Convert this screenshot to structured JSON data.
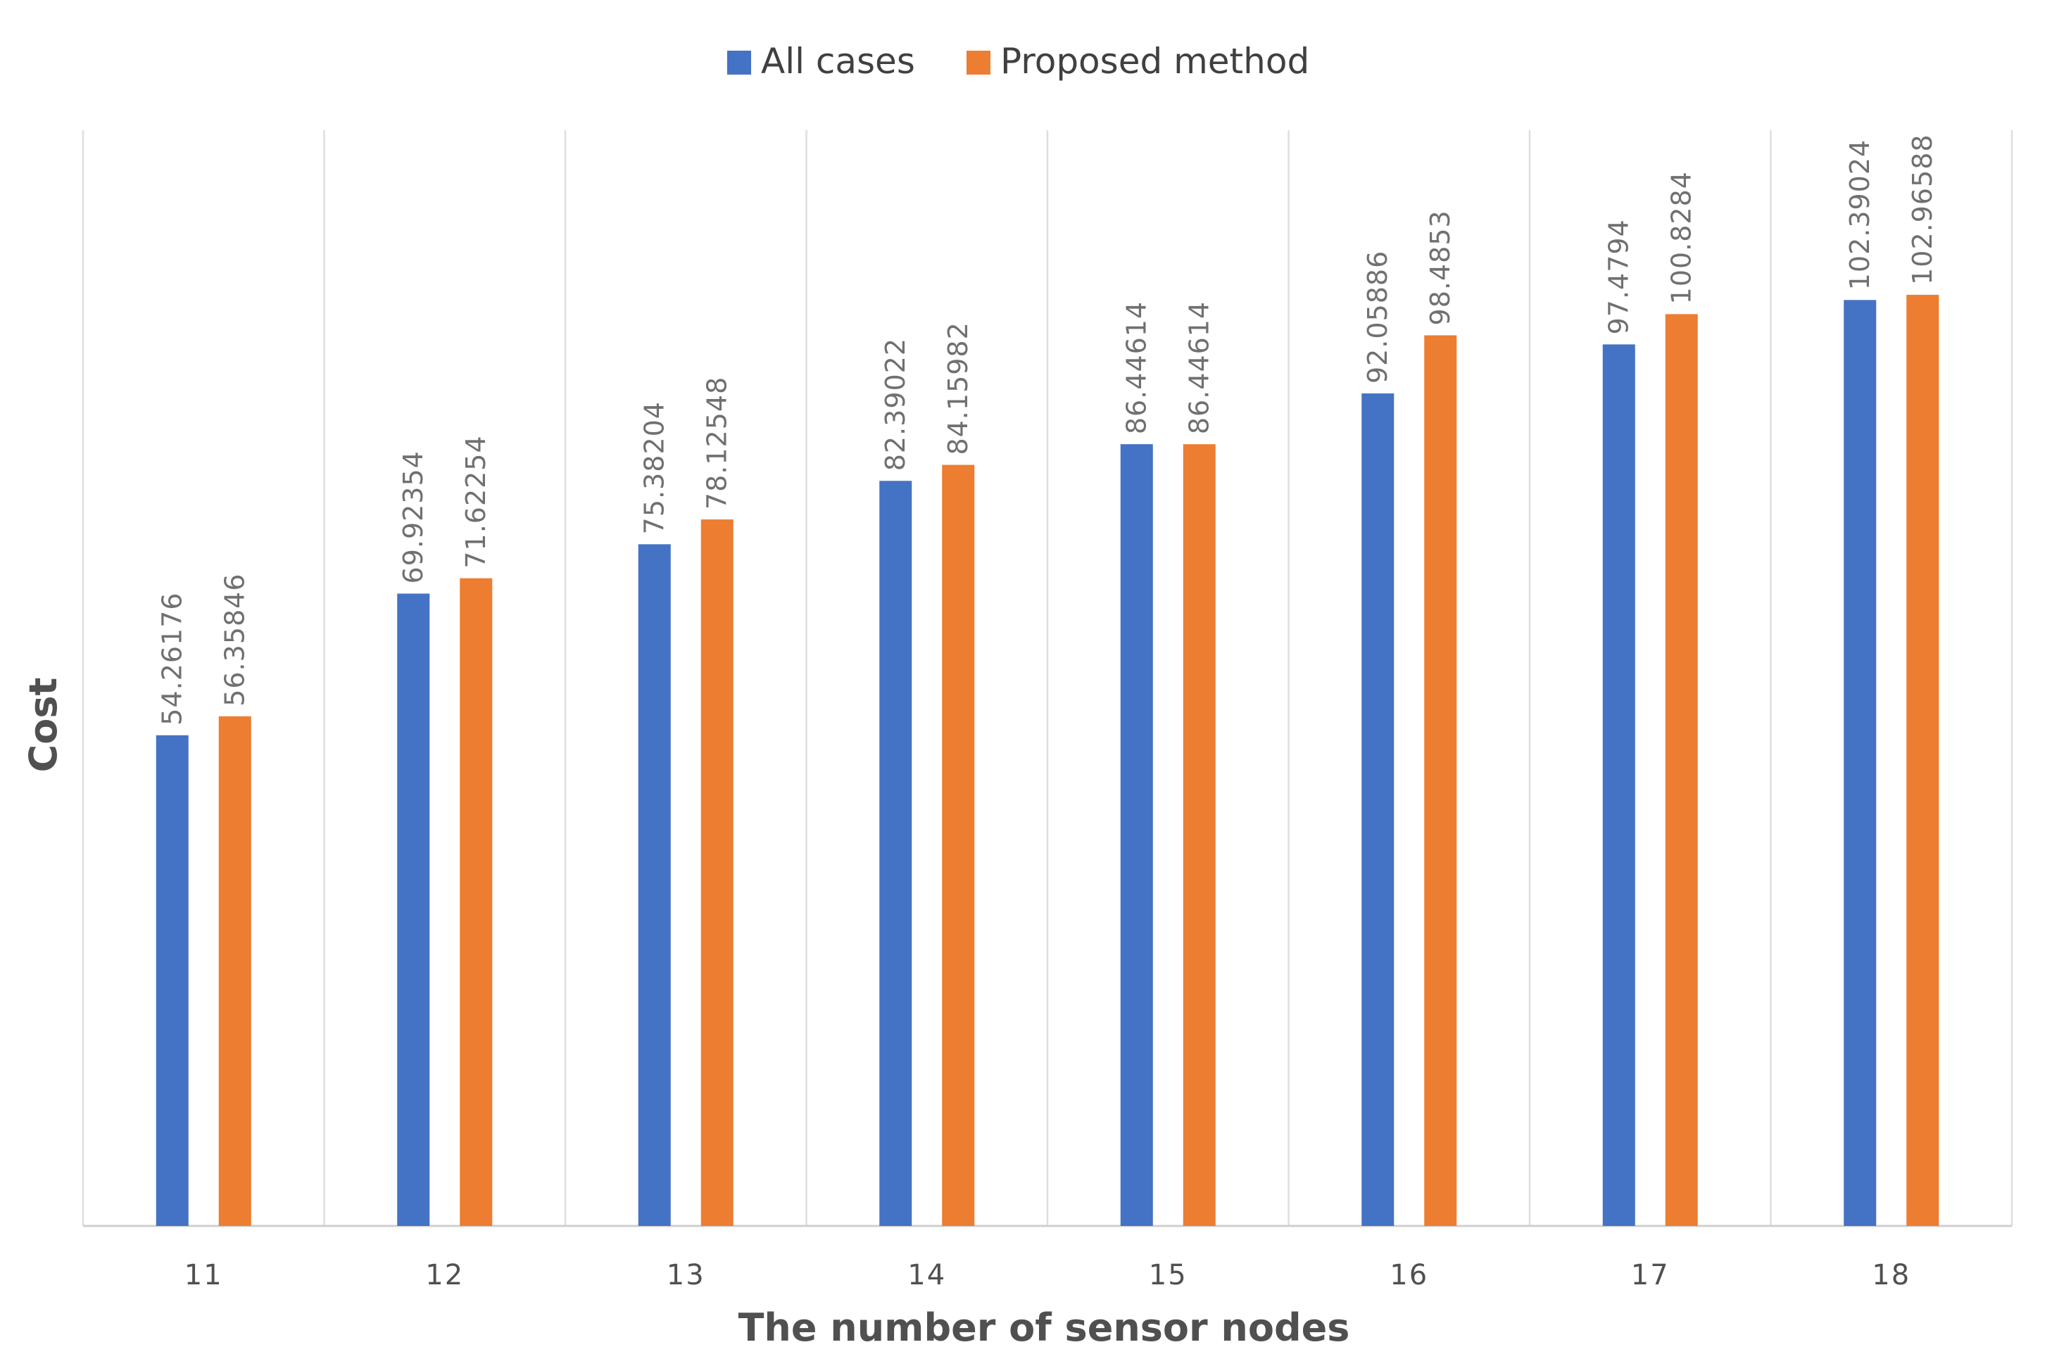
{
  "chart_data": {
    "type": "bar",
    "title": "",
    "xlabel": "The number of sensor nodes",
    "ylabel": "Cost",
    "categories": [
      "11",
      "12",
      "13",
      "14",
      "15",
      "16",
      "17",
      "18"
    ],
    "series": [
      {
        "name": "All cases",
        "color": "#4472C4",
        "values": [
          54.26176,
          69.92354,
          75.38204,
          82.39022,
          86.44614,
          92.05886,
          97.4794,
          102.39024
        ],
        "labels": [
          "54.26176",
          "69.92354",
          "75.38204",
          "82.39022",
          "86.44614",
          "92.05886",
          "97.4794",
          "102.39024"
        ]
      },
      {
        "name": "Proposed method",
        "color": "#ED7D31",
        "values": [
          56.35846,
          71.62254,
          78.12548,
          84.15982,
          86.44614,
          98.4853,
          100.8284,
          102.96588
        ],
        "labels": [
          "56.35846",
          "71.62254",
          "78.12548",
          "84.15982",
          "86.44614",
          "98.4853",
          "100.8284",
          "102.96588"
        ]
      }
    ],
    "ylim": [
      0,
      120
    ],
    "grid": "vertical",
    "legend": "top-center",
    "data_labels": "rotated-vertical"
  }
}
